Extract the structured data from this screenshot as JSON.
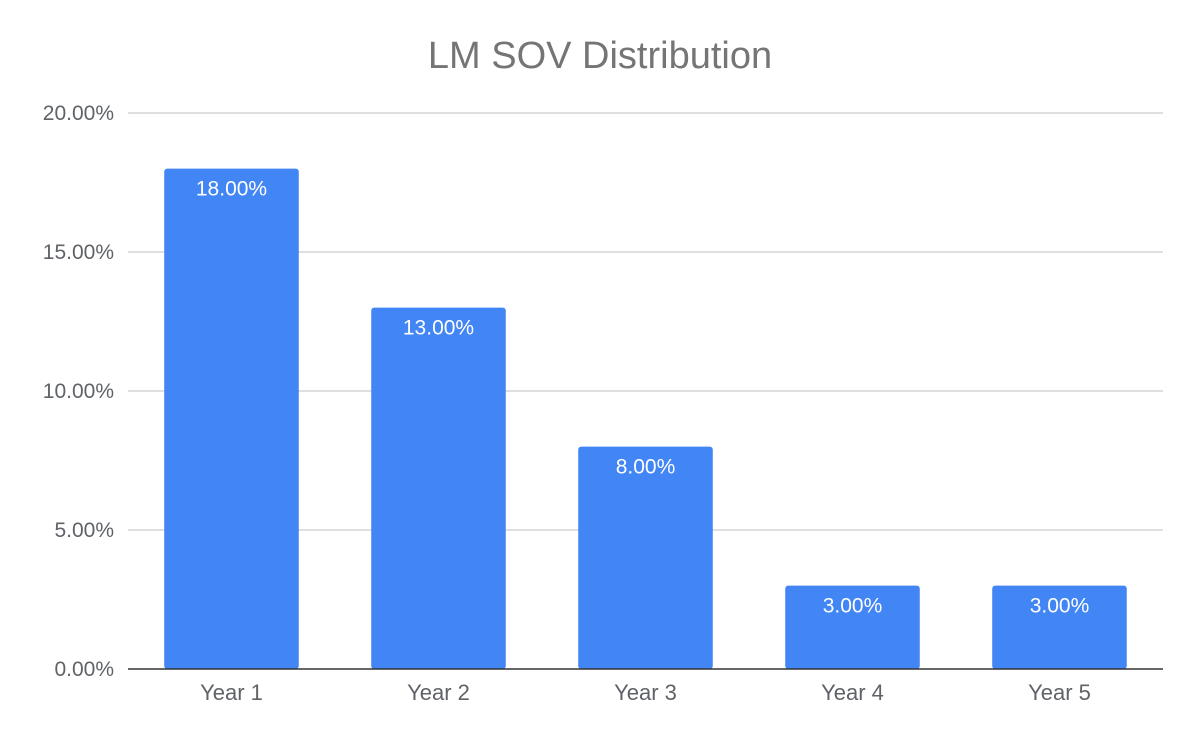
{
  "chart_data": {
    "type": "bar",
    "title": "LM SOV Distribution",
    "categories": [
      "Year 1",
      "Year 2",
      "Year 3",
      "Year 4",
      "Year 5"
    ],
    "values": [
      18,
      13,
      8,
      3,
      3
    ],
    "data_labels": [
      "18.00%",
      "13.00%",
      "8.00%",
      "3.00%",
      "3.00%"
    ],
    "yticks": [
      0,
      5,
      10,
      15,
      20
    ],
    "ytick_labels": [
      "0.00%",
      "5.00%",
      "10.00%",
      "15.00%",
      "20.00%"
    ],
    "ylim": [
      0,
      20
    ],
    "xlabel": "",
    "ylabel": "",
    "grid": true,
    "legend": "none",
    "colors": {
      "bar": "#4285f4"
    }
  }
}
